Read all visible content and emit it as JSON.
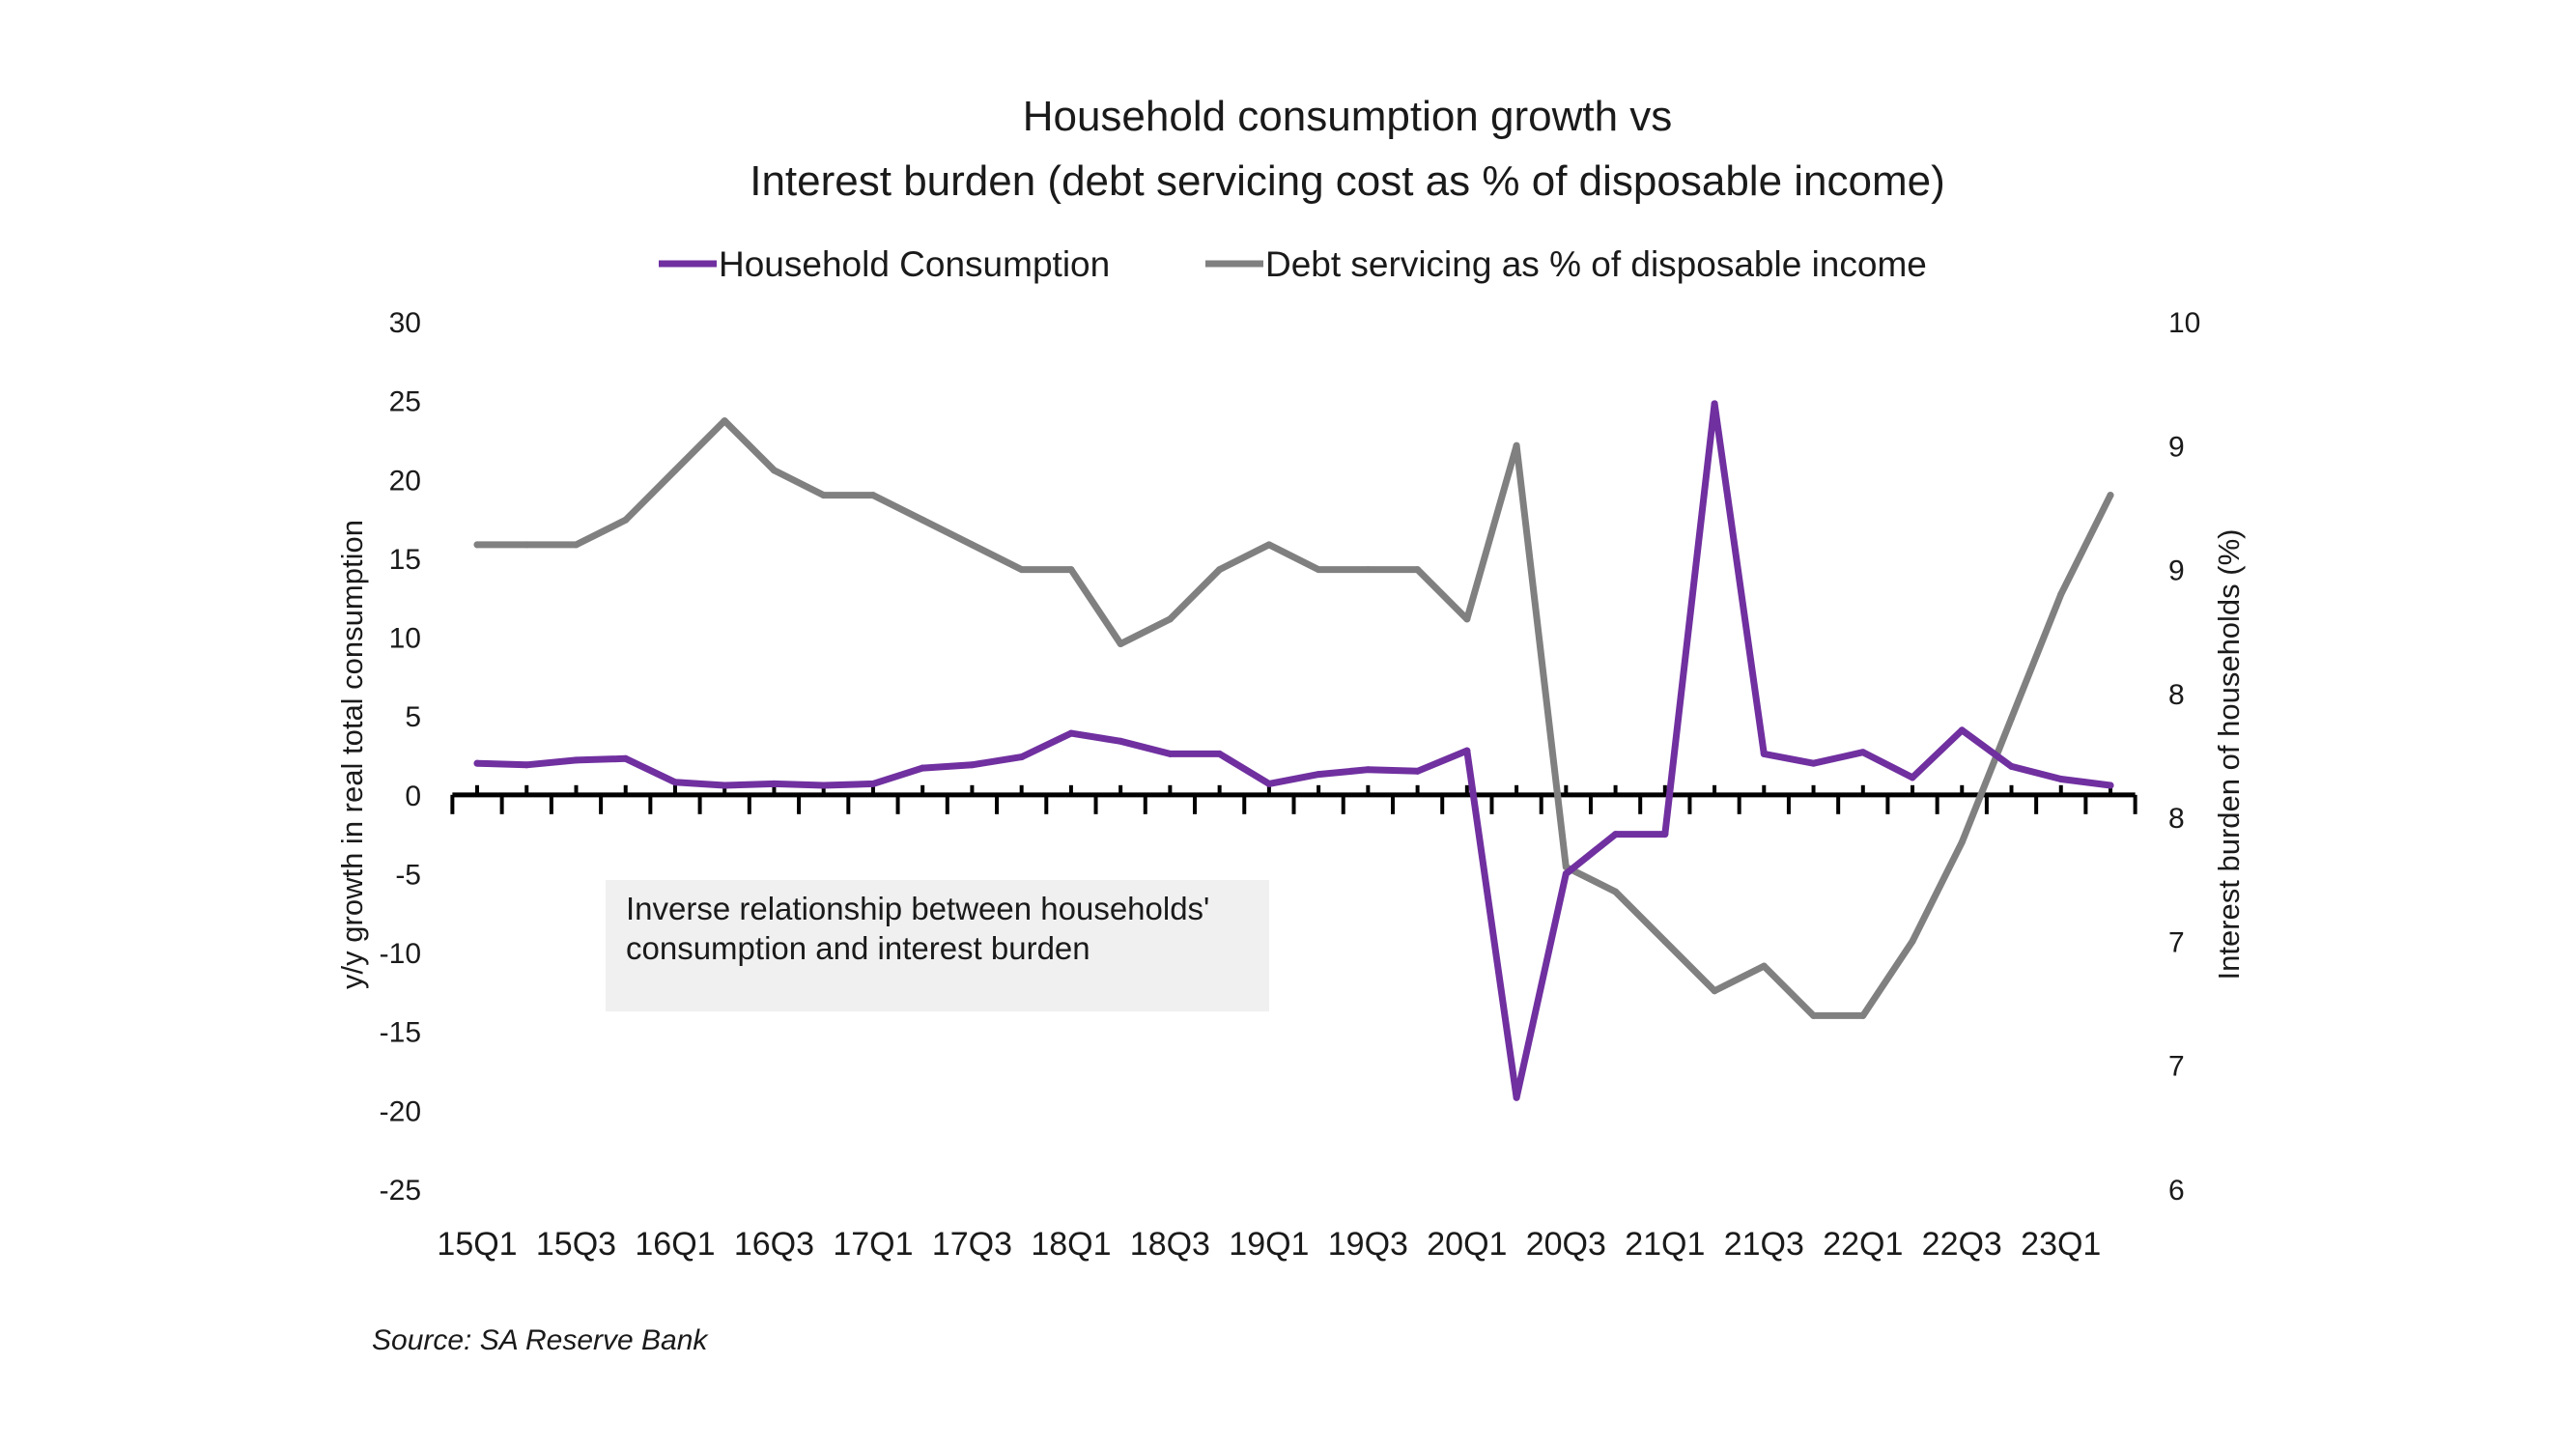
{
  "chart_data": {
    "type": "line",
    "title": [
      "Household consumption growth vs",
      "Interest burden (debt servicing cost as % of disposable income)"
    ],
    "ylabel": "y/y growth in real total consumption",
    "ylabel_right": "Interest burden of households (%)",
    "ylim": [
      -25,
      30
    ],
    "ylim_right": [
      6.5,
      10
    ],
    "yticks": [
      "30",
      "25",
      "20",
      "15",
      "10",
      "5",
      "0",
      "-5",
      "-10",
      "-15",
      "-20",
      "-25"
    ],
    "yticks_values": [
      30,
      25,
      20,
      15,
      10,
      5,
      0,
      -5,
      -10,
      -15,
      -20,
      -25
    ],
    "yticks_right": [
      "10",
      "9",
      "9",
      "8",
      "8",
      "7",
      "7",
      "6"
    ],
    "yticks_right_values": [
      10,
      9.5,
      9,
      8.5,
      8,
      7.5,
      7,
      6.5
    ],
    "x": [
      "15Q1",
      "15Q2",
      "15Q3",
      "15Q4",
      "16Q1",
      "16Q2",
      "16Q3",
      "16Q4",
      "17Q1",
      "17Q2",
      "17Q3",
      "17Q4",
      "18Q1",
      "18Q2",
      "18Q3",
      "18Q4",
      "19Q1",
      "19Q2",
      "19Q3",
      "19Q4",
      "20Q1",
      "20Q2",
      "20Q3",
      "20Q4",
      "21Q1",
      "21Q2",
      "21Q3",
      "21Q4",
      "22Q1",
      "22Q2",
      "22Q3",
      "22Q4",
      "23Q1",
      "23Q2"
    ],
    "xtick_labels": [
      "15Q1",
      "15Q3",
      "16Q1",
      "16Q3",
      "17Q1",
      "17Q3",
      "18Q1",
      "18Q3",
      "19Q1",
      "19Q3",
      "20Q1",
      "20Q3",
      "21Q1",
      "21Q3",
      "22Q1",
      "22Q3",
      "23Q1"
    ],
    "series": [
      {
        "name": "Household Consumption",
        "axis": "left",
        "color": "#7030a0",
        "values": [
          2.0,
          1.9,
          2.2,
          2.3,
          0.8,
          0.6,
          0.7,
          0.6,
          0.7,
          1.7,
          1.9,
          2.4,
          3.9,
          3.4,
          2.6,
          2.6,
          0.7,
          1.3,
          1.6,
          1.5,
          2.8,
          -19.2,
          -5.0,
          -2.5,
          -2.5,
          24.8,
          2.6,
          2.0,
          2.7,
          1.1,
          4.1,
          1.8,
          1.0,
          0.6
        ]
      },
      {
        "name": "Debt servicing as % of disposable income",
        "axis": "right",
        "color": "#808080",
        "values": [
          9.1,
          9.1,
          9.1,
          9.2,
          9.4,
          9.6,
          9.4,
          9.3,
          9.3,
          9.2,
          9.1,
          9.0,
          9.0,
          8.7,
          8.8,
          9.0,
          9.1,
          9.0,
          9.0,
          9.0,
          8.8,
          9.5,
          7.8,
          7.7,
          7.5,
          7.3,
          7.4,
          7.2,
          7.2,
          7.5,
          7.9,
          8.4,
          8.9,
          9.3
        ]
      }
    ],
    "legend_position": "top-center",
    "grid": false,
    "annotation": [
      "Inverse relationship between households'",
      "consumption and interest burden"
    ],
    "source": "Source: SA Reserve  Bank"
  }
}
